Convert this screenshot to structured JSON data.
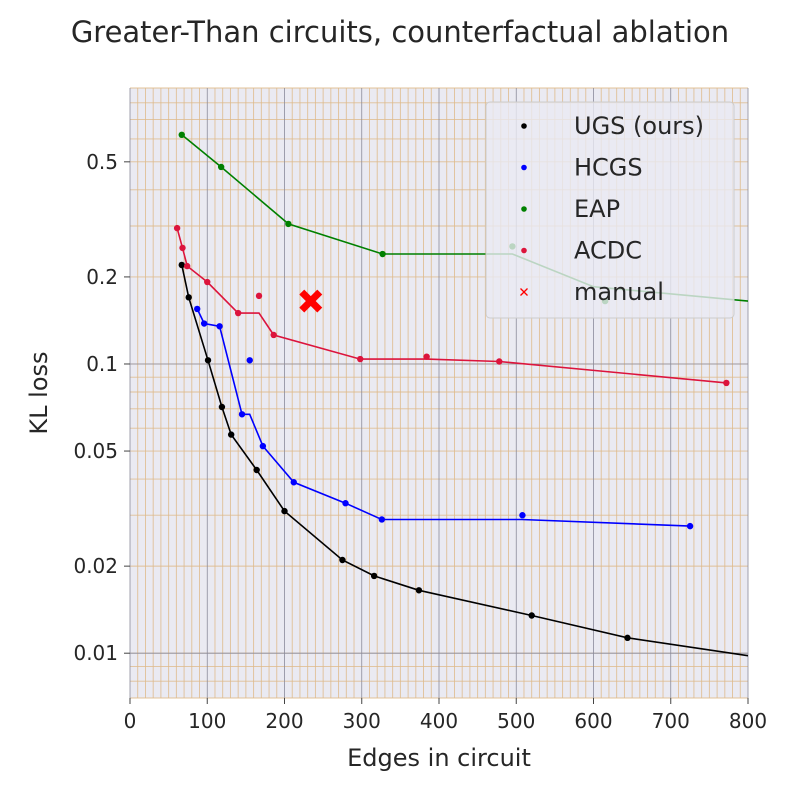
{
  "chart_data": {
    "type": "line",
    "title": "Greater-Than circuits, counterfactual ablation",
    "xlabel": "Edges in circuit",
    "ylabel": "KL loss",
    "xlim": [
      0,
      800
    ],
    "ylim": [
      0.007,
      0.9
    ],
    "yscale": "log",
    "grid": true,
    "legend_position": "top-right",
    "x_ticks": [
      0,
      100,
      200,
      300,
      400,
      500,
      600,
      700,
      800
    ],
    "y_ticks": [
      {
        "value": 0.5,
        "label": "0.5"
      },
      {
        "value": 0.2,
        "label": "0.2"
      },
      {
        "value": 0.1,
        "label": "0.1"
      },
      {
        "value": 0.05,
        "label": "0.05"
      },
      {
        "value": 0.02,
        "label": "0.02"
      },
      {
        "value": 0.01,
        "label": "0.01"
      }
    ],
    "series": [
      {
        "name": "UGS (ours)",
        "color": "#000000",
        "frontier": [
          [
            67,
            0.22
          ],
          [
            76,
            0.17
          ],
          [
            101,
            0.103
          ],
          [
            119,
            0.071
          ],
          [
            131,
            0.057
          ],
          [
            164,
            0.043
          ],
          [
            200,
            0.031
          ],
          [
            275,
            0.021
          ],
          [
            316,
            0.0185
          ],
          [
            374,
            0.0165
          ],
          [
            520,
            0.0135
          ],
          [
            644,
            0.0113
          ],
          [
            800,
            0.0098
          ]
        ],
        "points": [
          [
            67,
            0.22
          ],
          [
            76,
            0.17
          ],
          [
            101,
            0.103
          ],
          [
            119,
            0.071
          ],
          [
            131,
            0.057
          ],
          [
            164,
            0.043
          ],
          [
            200,
            0.031
          ],
          [
            275,
            0.021
          ],
          [
            316,
            0.0185
          ],
          [
            374,
            0.0165
          ],
          [
            520,
            0.0135
          ],
          [
            644,
            0.0113
          ]
        ]
      },
      {
        "name": "HCGS",
        "color": "#0000ff",
        "frontier": [
          [
            87,
            0.155
          ],
          [
            96,
            0.138
          ],
          [
            116,
            0.135
          ],
          [
            145,
            0.067
          ],
          [
            155,
            0.067
          ],
          [
            172,
            0.052
          ],
          [
            212,
            0.039
          ],
          [
            279,
            0.033
          ],
          [
            326,
            0.029
          ],
          [
            507,
            0.029
          ],
          [
            725,
            0.0275
          ]
        ],
        "points": [
          [
            87,
            0.155
          ],
          [
            96,
            0.138
          ],
          [
            116,
            0.135
          ],
          [
            145,
            0.067
          ],
          [
            155,
            0.103
          ],
          [
            172,
            0.052
          ],
          [
            212,
            0.039
          ],
          [
            279,
            0.033
          ],
          [
            326,
            0.029
          ],
          [
            508,
            0.03
          ],
          [
            725,
            0.0275
          ]
        ]
      },
      {
        "name": "EAP",
        "color": "#008000",
        "frontier": [
          [
            67,
            0.62
          ],
          [
            118,
            0.48
          ],
          [
            205,
            0.305
          ],
          [
            327,
            0.24
          ],
          [
            495,
            0.24
          ],
          [
            600,
            0.185
          ],
          [
            800,
            0.165
          ]
        ],
        "points": [
          [
            67,
            0.62
          ],
          [
            118,
            0.48
          ],
          [
            205,
            0.305
          ],
          [
            327,
            0.24
          ],
          [
            495,
            0.255
          ],
          [
            615,
            0.165
          ]
        ]
      },
      {
        "name": "ACDC",
        "color": "#dc143c",
        "frontier": [
          [
            61,
            0.295
          ],
          [
            68,
            0.252
          ],
          [
            74,
            0.218
          ],
          [
            100,
            0.192
          ],
          [
            140,
            0.15
          ],
          [
            167,
            0.15
          ],
          [
            186,
            0.126
          ],
          [
            298,
            0.104
          ],
          [
            384,
            0.104
          ],
          [
            478,
            0.102
          ],
          [
            772,
            0.086
          ]
        ],
        "points": [
          [
            61,
            0.295
          ],
          [
            68,
            0.252
          ],
          [
            74,
            0.218
          ],
          [
            100,
            0.192
          ],
          [
            140,
            0.15
          ],
          [
            167,
            0.172
          ],
          [
            186,
            0.126
          ],
          [
            298,
            0.104
          ],
          [
            384,
            0.106
          ],
          [
            478,
            0.102
          ],
          [
            772,
            0.086
          ]
        ]
      },
      {
        "name": "manual",
        "color": "#ff0000",
        "marker": "x",
        "points": [
          [
            234,
            0.165
          ]
        ]
      }
    ]
  }
}
